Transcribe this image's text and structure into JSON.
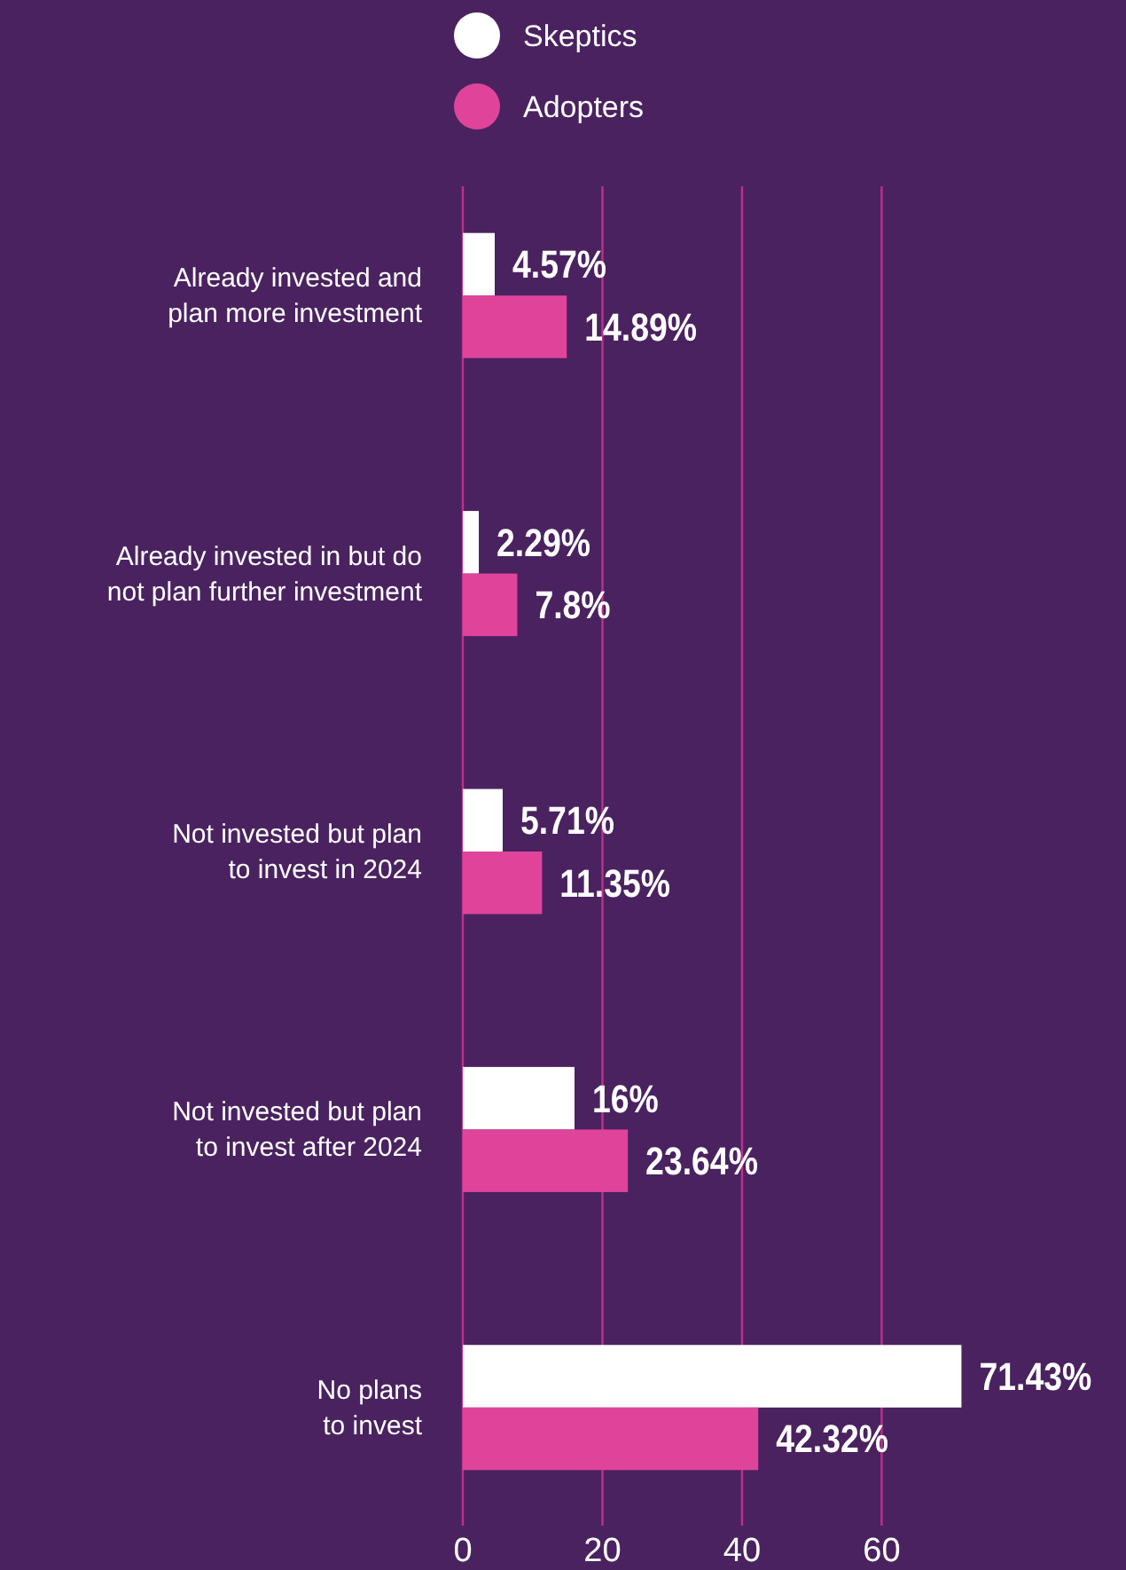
{
  "chart_data": {
    "type": "bar",
    "orientation": "horizontal",
    "categories": [
      "Already invested and\nplan more investment",
      "Already invested in but do\nnot plan further investment",
      "Not invested but plan\nto invest in 2024",
      "Not invested but plan\nto invest after 2024",
      "No plans\nto invest"
    ],
    "series": [
      {
        "name": "Skeptics",
        "color": "#ffffff",
        "values": [
          4.57,
          2.29,
          5.71,
          16,
          71.43
        ],
        "value_labels": [
          "4.57%",
          "2.29%",
          "5.71%",
          "16%",
          "71.43%"
        ]
      },
      {
        "name": "Adopters",
        "color": "#e0449a",
        "values": [
          14.89,
          7.8,
          11.35,
          23.64,
          42.32
        ],
        "value_labels": [
          "14.89%",
          "7.8%",
          "11.35%",
          "23.64%",
          "42.32%"
        ]
      }
    ],
    "xlim": [
      0,
      95
    ],
    "xticks": [
      0,
      20,
      40,
      60
    ],
    "grid": "x",
    "legend": "top"
  }
}
